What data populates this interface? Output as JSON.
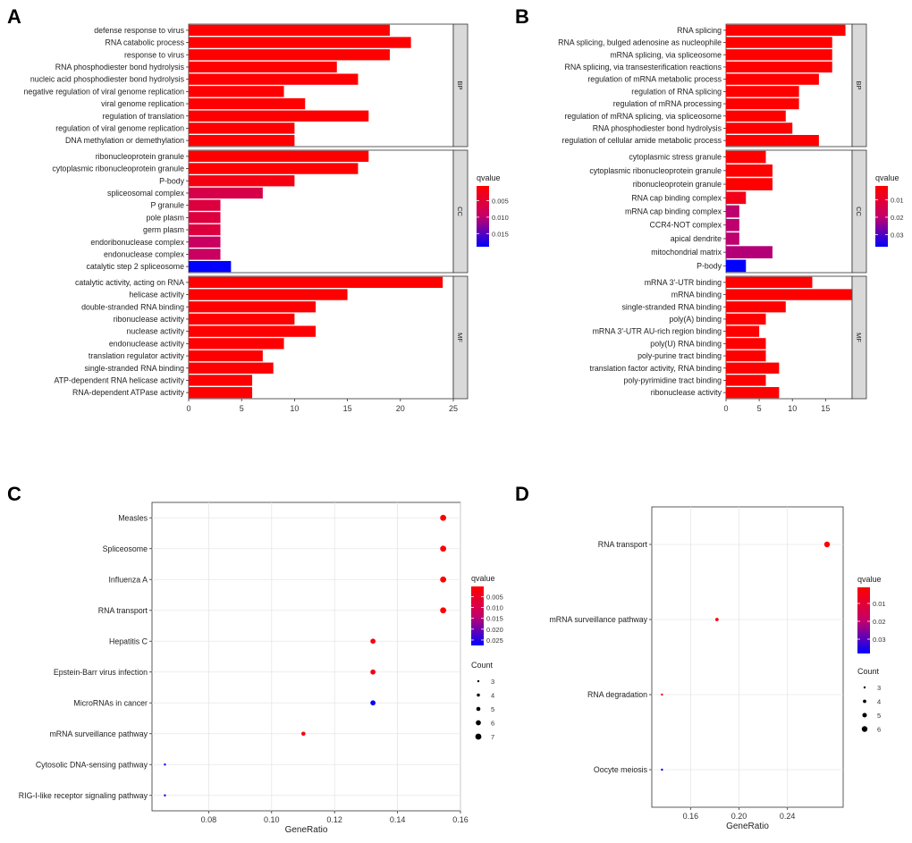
{
  "panel_labels": {
    "A": "A",
    "B": "B",
    "C": "C",
    "D": "D"
  },
  "colors": {
    "low_qvalue": "#ff0000",
    "high_qvalue": "#0000ff",
    "facet_strip": "#d9d9d9",
    "grid": "#e6e6e6"
  },
  "chart_data": [
    {
      "panel": "A",
      "type": "bar",
      "orientation": "horizontal",
      "xlabel": "",
      "xlim": [
        0,
        25
      ],
      "xticks": [
        0,
        5,
        10,
        15,
        20,
        25
      ],
      "legend": {
        "title": "qvalue",
        "ticks": [
          0.005,
          0.01,
          0.015
        ],
        "tick_labels": [
          "0.005",
          "0.010",
          "0.015"
        ],
        "range": [
          0.0005,
          0.019
        ],
        "position": "right"
      },
      "facets": [
        {
          "name": "BP",
          "bars": [
            {
              "label": "defense response to virus",
              "value": 19,
              "qvalue": 0.0006
            },
            {
              "label": "RNA catabolic process",
              "value": 21,
              "qvalue": 0.0006
            },
            {
              "label": "response to virus",
              "value": 19,
              "qvalue": 0.0006
            },
            {
              "label": "RNA phosphodiester bond hydrolysis",
              "value": 14,
              "qvalue": 0.0006
            },
            {
              "label": "nucleic acid phosphodiester bond hydrolysis",
              "value": 16,
              "qvalue": 0.0006
            },
            {
              "label": "negative regulation of viral genome replication",
              "value": 9,
              "qvalue": 0.0006
            },
            {
              "label": "viral genome replication",
              "value": 11,
              "qvalue": 0.0006
            },
            {
              "label": "regulation of translation",
              "value": 17,
              "qvalue": 0.0006
            },
            {
              "label": "regulation of viral genome replication",
              "value": 10,
              "qvalue": 0.0006
            },
            {
              "label": "DNA methylation or demethylation",
              "value": 10,
              "qvalue": 0.0006
            }
          ]
        },
        {
          "name": "CC",
          "bars": [
            {
              "label": "ribonucleoprotein granule",
              "value": 17,
              "qvalue": 0.0006
            },
            {
              "label": "cytoplasmic ribonucleoprotein granule",
              "value": 16,
              "qvalue": 0.0006
            },
            {
              "label": "P-body",
              "value": 10,
              "qvalue": 0.002
            },
            {
              "label": "spliceosomal complex",
              "value": 7,
              "qvalue": 0.007
            },
            {
              "label": "P granule",
              "value": 3,
              "qvalue": 0.006
            },
            {
              "label": "pole plasm",
              "value": 3,
              "qvalue": 0.006
            },
            {
              "label": "germ plasm",
              "value": 3,
              "qvalue": 0.006
            },
            {
              "label": "endoribonuclease complex",
              "value": 3,
              "qvalue": 0.009
            },
            {
              "label": "endonuclease complex",
              "value": 3,
              "qvalue": 0.009
            },
            {
              "label": "catalytic step 2 spliceosome",
              "value": 4,
              "qvalue": 0.019
            }
          ]
        },
        {
          "name": "MF",
          "bars": [
            {
              "label": "catalytic activity, acting on RNA",
              "value": 24,
              "qvalue": 0.0006
            },
            {
              "label": "helicase activity",
              "value": 15,
              "qvalue": 0.0006
            },
            {
              "label": "double-stranded RNA binding",
              "value": 12,
              "qvalue": 0.0006
            },
            {
              "label": "ribonuclease activity",
              "value": 10,
              "qvalue": 0.0006
            },
            {
              "label": "nuclease activity",
              "value": 12,
              "qvalue": 0.0006
            },
            {
              "label": "endonuclease activity",
              "value": 9,
              "qvalue": 0.0006
            },
            {
              "label": "translation regulator activity",
              "value": 7,
              "qvalue": 0.0006
            },
            {
              "label": "single-stranded RNA binding",
              "value": 8,
              "qvalue": 0.0006
            },
            {
              "label": "ATP-dependent RNA helicase activity",
              "value": 6,
              "qvalue": 0.0006
            },
            {
              "label": "RNA-dependent ATPase activity",
              "value": 6,
              "qvalue": 0.0006
            }
          ]
        }
      ]
    },
    {
      "panel": "B",
      "type": "bar",
      "orientation": "horizontal",
      "xlabel": "",
      "xlim": [
        0,
        19
      ],
      "xticks": [
        0,
        5,
        10,
        15
      ],
      "legend": {
        "title": "qvalue",
        "ticks": [
          0.01,
          0.02,
          0.03
        ],
        "tick_labels": [
          "0.01",
          "0.02",
          "0.03"
        ],
        "range": [
          0.002,
          0.037
        ],
        "position": "right"
      },
      "facets": [
        {
          "name": "BP",
          "bars": [
            {
              "label": "RNA splicing",
              "value": 18,
              "qvalue": 0.002
            },
            {
              "label": "RNA splicing, bulged adenosine as nucleophile",
              "value": 16,
              "qvalue": 0.002
            },
            {
              "label": "mRNA splicing, via spliceosome",
              "value": 16,
              "qvalue": 0.002
            },
            {
              "label": "RNA splicing, via transesterification reactions",
              "value": 16,
              "qvalue": 0.002
            },
            {
              "label": "regulation of mRNA metabolic process",
              "value": 14,
              "qvalue": 0.002
            },
            {
              "label": "regulation of RNA splicing",
              "value": 11,
              "qvalue": 0.002
            },
            {
              "label": "regulation of mRNA processing",
              "value": 11,
              "qvalue": 0.002
            },
            {
              "label": "regulation of mRNA splicing, via spliceosome",
              "value": 9,
              "qvalue": 0.002
            },
            {
              "label": "RNA phosphodiester bond hydrolysis",
              "value": 10,
              "qvalue": 0.002
            },
            {
              "label": "regulation of cellular amide metabolic process",
              "value": 14,
              "qvalue": 0.002
            }
          ]
        },
        {
          "name": "CC",
          "bars": [
            {
              "label": "cytoplasmic stress granule",
              "value": 6,
              "qvalue": 0.002
            },
            {
              "label": "cytoplasmic ribonucleoprotein granule",
              "value": 7,
              "qvalue": 0.002
            },
            {
              "label": "ribonucleoprotein granule",
              "value": 7,
              "qvalue": 0.002
            },
            {
              "label": "RNA cap binding complex",
              "value": 3,
              "qvalue": 0.006
            },
            {
              "label": "mRNA cap binding complex",
              "value": 2,
              "qvalue": 0.02
            },
            {
              "label": "CCR4-NOT complex",
              "value": 2,
              "qvalue": 0.02
            },
            {
              "label": "apical dendrite",
              "value": 2,
              "qvalue": 0.02
            },
            {
              "label": "mitochondrial matrix",
              "value": 7,
              "qvalue": 0.021
            },
            {
              "label": "P-body",
              "value": 3,
              "qvalue": 0.037
            }
          ]
        },
        {
          "name": "MF",
          "bars": [
            {
              "label": "mRNA 3'-UTR binding",
              "value": 13,
              "qvalue": 0.002
            },
            {
              "label": "mRNA binding",
              "value": 19,
              "qvalue": 0.002
            },
            {
              "label": "single-stranded RNA binding",
              "value": 9,
              "qvalue": 0.002
            },
            {
              "label": "poly(A) binding",
              "value": 6,
              "qvalue": 0.002
            },
            {
              "label": "mRNA 3'-UTR AU-rich region binding",
              "value": 5,
              "qvalue": 0.002
            },
            {
              "label": "poly(U) RNA binding",
              "value": 6,
              "qvalue": 0.002
            },
            {
              "label": "poly-purine tract binding",
              "value": 6,
              "qvalue": 0.002
            },
            {
              "label": "translation factor activity, RNA binding",
              "value": 8,
              "qvalue": 0.002
            },
            {
              "label": "poly-pyrimidine tract binding",
              "value": 6,
              "qvalue": 0.002
            },
            {
              "label": "ribonuclease activity",
              "value": 8,
              "qvalue": 0.002
            }
          ]
        }
      ]
    },
    {
      "panel": "C",
      "type": "scatter",
      "xlabel": "GeneRatio",
      "xlim": [
        0.062,
        0.16
      ],
      "xticks": [
        0.08,
        0.1,
        0.12,
        0.14,
        0.16
      ],
      "xtick_labels": [
        "0.08",
        "0.10",
        "0.12",
        "0.14",
        "0.16"
      ],
      "legend": {
        "title": "qvalue",
        "ticks": [
          0.005,
          0.01,
          0.015,
          0.02,
          0.025
        ],
        "tick_labels": [
          "0.005",
          "0.010",
          "0.015",
          "0.020",
          "0.025"
        ],
        "range": [
          0.0003,
          0.0275
        ],
        "position": "right"
      },
      "size_legend": {
        "title": "Count",
        "values": [
          3,
          4,
          5,
          6,
          7
        ]
      },
      "points": [
        {
          "label": "Measles",
          "x": 0.1545,
          "count": 7,
          "qvalue": 0.0005
        },
        {
          "label": "Spliceosome",
          "x": 0.1545,
          "count": 7,
          "qvalue": 0.0005
        },
        {
          "label": "Influenza A",
          "x": 0.1545,
          "count": 7,
          "qvalue": 0.0005
        },
        {
          "label": "RNA transport",
          "x": 0.1545,
          "count": 7,
          "qvalue": 0.0005
        },
        {
          "label": "Hepatitis C",
          "x": 0.1322,
          "count": 6,
          "qvalue": 0.002
        },
        {
          "label": "Epstein-Barr virus infection",
          "x": 0.1322,
          "count": 6,
          "qvalue": 0.003
        },
        {
          "label": "MicroRNAs in cancer",
          "x": 0.1322,
          "count": 6,
          "qvalue": 0.027
        },
        {
          "label": "mRNA surveillance pathway",
          "x": 0.1101,
          "count": 5,
          "qvalue": 0.002
        },
        {
          "label": "Cytosolic DNA-sensing pathway",
          "x": 0.0661,
          "count": 3,
          "qvalue": 0.027
        },
        {
          "label": "RIG-I-like receptor signaling pathway",
          "x": 0.0661,
          "count": 3,
          "qvalue": 0.027
        }
      ]
    },
    {
      "panel": "D",
      "type": "scatter",
      "xlabel": "GeneRatio",
      "xlim": [
        0.128,
        0.286
      ],
      "xticks": [
        0.16,
        0.2,
        0.24
      ],
      "xtick_labels": [
        "0.16",
        "0.20",
        "0.24"
      ],
      "legend": {
        "title": "qvalue",
        "ticks": [
          0.01,
          0.02,
          0.03
        ],
        "tick_labels": [
          "0.01",
          "0.02",
          "0.03"
        ],
        "range": [
          0.001,
          0.038
        ],
        "position": "right"
      },
      "size_legend": {
        "title": "Count",
        "values": [
          3,
          4,
          5,
          6
        ]
      },
      "points": [
        {
          "label": "RNA transport",
          "x": 0.2727,
          "count": 6,
          "qvalue": 0.001
        },
        {
          "label": "mRNA surveillance pathway",
          "x": 0.1818,
          "count": 4,
          "qvalue": 0.003
        },
        {
          "label": "RNA degradation",
          "x": 0.1364,
          "count": 3,
          "qvalue": 0.004
        },
        {
          "label": "Oocyte meiosis",
          "x": 0.1364,
          "count": 3,
          "qvalue": 0.038
        }
      ]
    }
  ]
}
